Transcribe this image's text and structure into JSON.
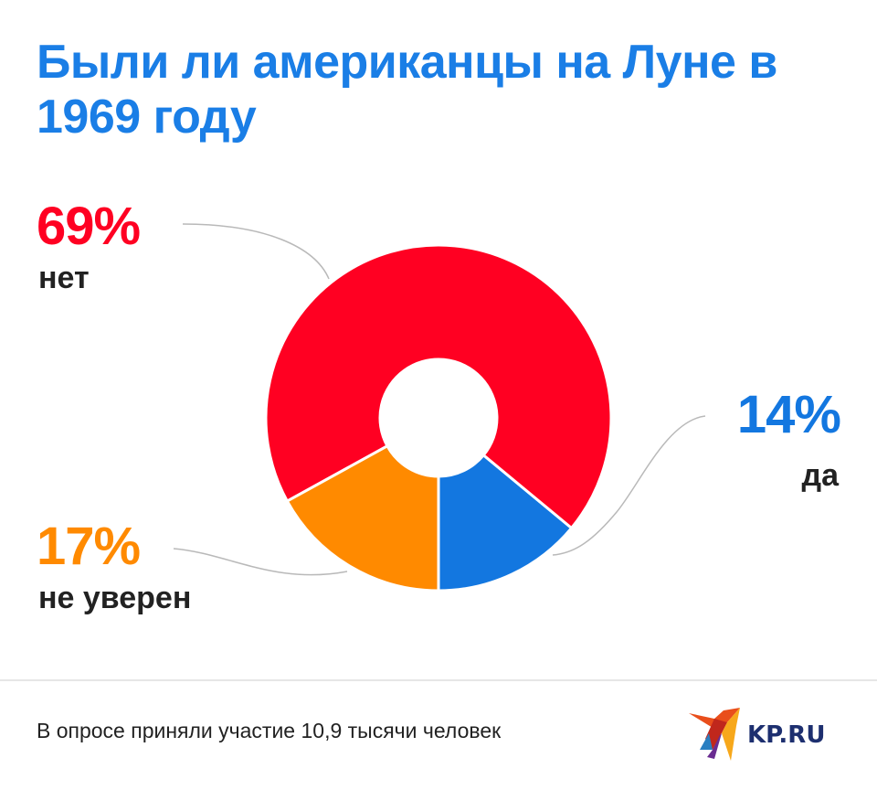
{
  "title": "Были ли американцы на Луне в 1969 году",
  "footer": "В опросе приняли участие 10,9 тысячи человек",
  "logo": "KP.RU",
  "chart_data": {
    "type": "pie",
    "donut": true,
    "title": "Были ли американцы на Луне в 1969 году",
    "slices": [
      {
        "label": "да",
        "value": 14,
        "display": "14%",
        "color": "#1377e0"
      },
      {
        "label": "нет",
        "value": 69,
        "display": "69%",
        "color": "#ff0022"
      },
      {
        "label": "не уверен",
        "value": 17,
        "display": "17%",
        "color": "#ff8a00"
      }
    ],
    "legend": "none"
  }
}
